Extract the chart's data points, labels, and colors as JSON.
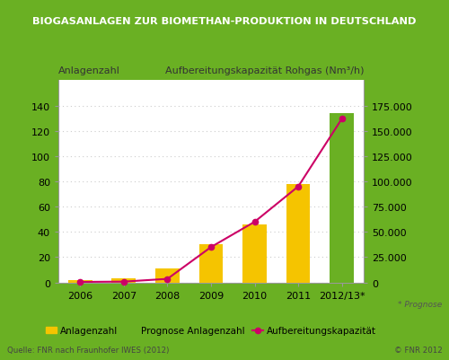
{
  "title": "BIOGASANLAGEN ZUR BIOMETHAN-PRODUKTION IN DEUTSCHLAND",
  "title_bg_color": "#6ab023",
  "title_text_color": "#ffffff",
  "chart_bg_color": "#ffffff",
  "outer_bg_color": "#6ab023",
  "years": [
    "2006",
    "2007",
    "2008",
    "2009",
    "2010",
    "2011",
    "2012/13*"
  ],
  "bar_values_yellow": [
    2,
    3,
    11,
    30,
    46,
    78,
    0
  ],
  "bar_values_green": [
    0,
    0,
    0,
    0,
    0,
    0,
    134
  ],
  "line_values_right": [
    500,
    800,
    3500,
    35000,
    60000,
    95000,
    162000
  ],
  "bar_color_yellow": "#f5c400",
  "bar_color_green": "#6ab023",
  "line_color": "#cc0066",
  "ylim_left": [
    0,
    160
  ],
  "ylim_right": [
    0,
    200000
  ],
  "yticks_left": [
    0,
    20,
    40,
    60,
    80,
    100,
    120,
    140
  ],
  "yticks_right": [
    0,
    25000,
    50000,
    75000,
    100000,
    125000,
    150000,
    175000
  ],
  "ylabel_left": "Anlagenzahl",
  "ylabel_right": "Aufbereitungskapazität Rohgas (Nm³/h)",
  "legend_labels": [
    "Anlagenzahl",
    "Prognose Anlagenzahl",
    "Aufbereitungskapazität"
  ],
  "footnote_left": "Quelle: FNR nach Fraunhofer IWES (2012)",
  "footnote_right": "© FNR 2012",
  "prognose_note": "* Prognose",
  "border_color": "#6ab023",
  "grid_color": "#cccccc",
  "tick_label_fontsize": 8,
  "axis_label_fontsize": 8
}
